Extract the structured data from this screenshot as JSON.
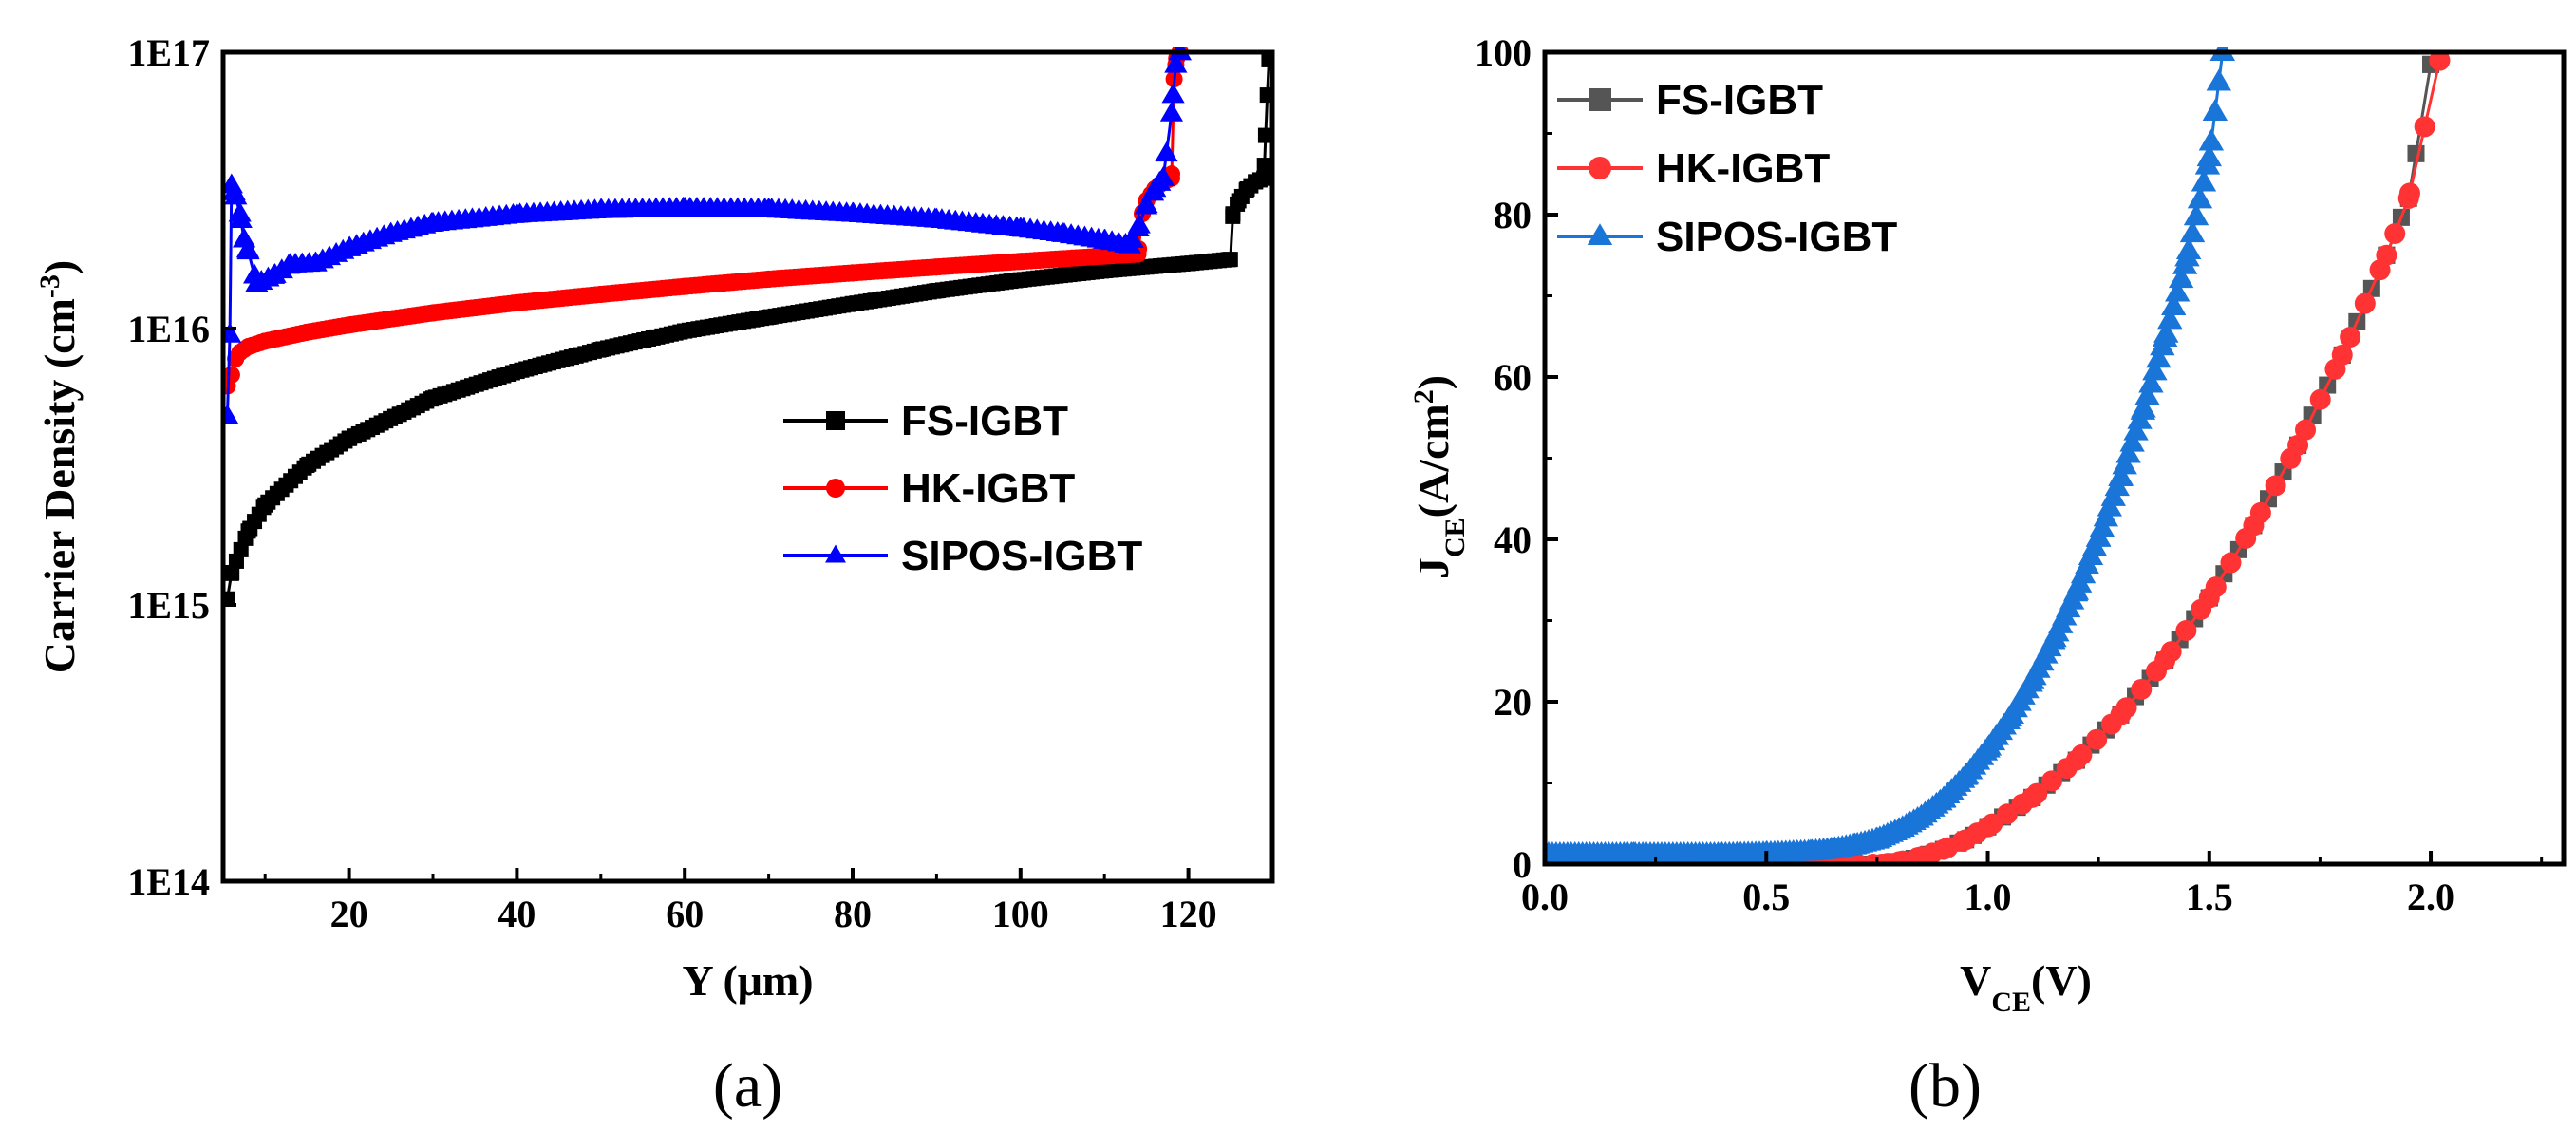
{
  "chart_data": [
    {
      "type": "line",
      "panel_label": "(a)",
      "title": "",
      "xlabel": "Y (μm)",
      "ylabel_main": "Carrier Density (cm",
      "ylabel_sup": "-3",
      "ylabel_end": ")",
      "xlim": [
        5,
        130
      ],
      "ylim": [
        100000000000000.0,
        1e+17
      ],
      "yscale": "log",
      "xticks": [
        20,
        40,
        60,
        80,
        100,
        120
      ],
      "xtick_labels": [
        "20",
        "40",
        "60",
        "80",
        "100",
        "120"
      ],
      "yticks": [
        100000000000000.0,
        1000000000000000.0,
        1e+16,
        1e+17
      ],
      "ytick_labels": [
        "1E14",
        "1E15",
        "1E16",
        "1E17"
      ],
      "legend_position": "center-right",
      "series": [
        {
          "name": "FS-IGBT",
          "color": "#000000",
          "marker": "square",
          "x": [
            5.5,
            6,
            8,
            10,
            15,
            20,
            30,
            40,
            50,
            60,
            70,
            80,
            90,
            100,
            110,
            120,
            125,
            125.3,
            126,
            127,
            128,
            129,
            129.2,
            129.4,
            129.6
          ],
          "y": [
            1050000000000000.0,
            1300000000000000.0,
            1850000000000000.0,
            2300000000000000.0,
            3200000000000000.0,
            4000000000000000.0,
            5600000000000000.0,
            7000000000000000.0,
            8400000000000000.0,
            9800000000000000.0,
            1.1e+16,
            1.23e+16,
            1.37e+16,
            1.5e+16,
            1.62e+16,
            1.72e+16,
            1.78e+16,
            2.6e+16,
            2.9e+16,
            3.2e+16,
            3.4e+16,
            3.5e+16,
            5e+16,
            7e+16,
            9.4e+16
          ]
        },
        {
          "name": "HK-IGBT",
          "color": "#ff0000",
          "marker": "circle",
          "x": [
            5.5,
            6,
            6.5,
            7,
            8,
            10,
            15,
            20,
            30,
            40,
            50,
            60,
            70,
            80,
            90,
            100,
            110,
            114,
            114.5,
            115,
            116,
            117,
            118,
            118.3,
            118.6,
            119
          ],
          "y": [
            6200000000000000.0,
            6800000000000000.0,
            7800000000000000.0,
            8200000000000000.0,
            8600000000000000.0,
            9000000000000000.0,
            9700000000000000.0,
            1.03e+16,
            1.14e+16,
            1.24e+16,
            1.33e+16,
            1.42e+16,
            1.51e+16,
            1.59e+16,
            1.67e+16,
            1.75e+16,
            1.83e+16,
            1.86e+16,
            2.6e+16,
            2.9e+16,
            3.2e+16,
            3.4e+16,
            3.5e+16,
            8e+16,
            9.5e+16,
            1e+17
          ]
        },
        {
          "name": "SIPOS-IGBT",
          "color": "#0000ff",
          "marker": "triangle",
          "x": [
            5.5,
            5.8,
            6,
            6.5,
            7,
            7.5,
            8,
            9,
            11,
            13,
            16,
            20,
            25,
            30,
            40,
            50,
            60,
            70,
            80,
            90,
            100,
            105,
            110,
            113,
            114,
            115,
            116,
            117,
            118,
            118.5,
            119
          ],
          "y": [
            4800000000000000.0,
            9500000000000000.0,
            3.3e+16,
            3e+16,
            2.6e+16,
            2.1e+16,
            1.9e+16,
            1.45e+16,
            1.55e+16,
            1.7e+16,
            1.72e+16,
            1.95e+16,
            2.2e+16,
            2.4e+16,
            2.58e+16,
            2.68e+16,
            2.72e+16,
            2.7e+16,
            2.6e+16,
            2.48e+16,
            2.3e+16,
            2.2e+16,
            2.08e+16,
            2e+16,
            2.3e+16,
            2.8e+16,
            3.2e+16,
            3.5e+16,
            6e+16,
            9e+16,
            1e+17
          ]
        }
      ]
    },
    {
      "type": "line",
      "panel_label": "(b)",
      "title": "",
      "xlabel_main": "V",
      "xlabel_sub": "CE",
      "xlabel_end": "(V)",
      "ylabel_main": "J",
      "ylabel_sub": "CE",
      "ylabel_mid": "(A/cm",
      "ylabel_sup": "2",
      "ylabel_end": ")",
      "xlim": [
        0.0,
        2.3
      ],
      "ylim": [
        0,
        100
      ],
      "xticks": [
        0.0,
        0.5,
        1.0,
        1.5,
        2.0
      ],
      "xtick_labels": [
        "0.0",
        "0.5",
        "1.0",
        "1.5",
        "2.0"
      ],
      "yticks": [
        0,
        20,
        40,
        60,
        80,
        100
      ],
      "ytick_labels": [
        "0",
        "20",
        "40",
        "60",
        "80",
        "100"
      ],
      "legend_position": "top-left",
      "series": [
        {
          "name": "FS-IGBT",
          "color": "#555555",
          "marker": "square",
          "x": [
            0.0,
            0.2,
            0.4,
            0.6,
            0.7,
            0.76,
            0.8,
            0.85,
            0.9,
            0.95,
            1.0,
            1.1,
            1.2,
            1.3,
            1.4,
            1.5,
            1.6,
            1.7,
            1.8,
            1.9,
            1.95,
            2.0
          ],
          "y": [
            0,
            0,
            0,
            0,
            0,
            0,
            0.3,
            0.9,
            1.8,
            3.0,
            4.6,
            8.2,
            12.8,
            18.4,
            25.1,
            32.8,
            41.7,
            51.6,
            62.7,
            75,
            82,
            98.5
          ]
        },
        {
          "name": "HK-IGBT",
          "color": "#ff3333",
          "marker": "circle",
          "x": [
            0.0,
            0.2,
            0.4,
            0.6,
            0.7,
            0.76,
            0.8,
            0.85,
            0.9,
            0.95,
            1.0,
            1.1,
            1.2,
            1.3,
            1.4,
            1.5,
            1.6,
            1.7,
            1.8,
            1.9,
            1.95,
            2.02
          ],
          "y": [
            0,
            0,
            0,
            0,
            0,
            0,
            0.3,
            0.9,
            1.8,
            3.0,
            4.6,
            8.2,
            12.8,
            18.4,
            25.1,
            32.8,
            41.7,
            51.6,
            62.7,
            75,
            82,
            99
          ]
        },
        {
          "name": "SIPOS-IGBT",
          "color": "#1a75d9",
          "marker": "triangle",
          "x": [
            0.0,
            0.2,
            0.4,
            0.5,
            0.6,
            0.65,
            0.7,
            0.75,
            0.8,
            0.85,
            0.9,
            0.95,
            1.0,
            1.05,
            1.1,
            1.15,
            1.2,
            1.25,
            1.3,
            1.35,
            1.4,
            1.45,
            1.5,
            1.53
          ],
          "y": [
            1.2,
            1.2,
            1.2,
            1.3,
            1.5,
            1.8,
            2.3,
            3.0,
            4.2,
            5.8,
            8.0,
            10.8,
            14.2,
            18.0,
            22.6,
            27.8,
            33.6,
            40.2,
            47.6,
            55.8,
            64.8,
            74.7,
            87,
            100
          ]
        }
      ]
    }
  ]
}
